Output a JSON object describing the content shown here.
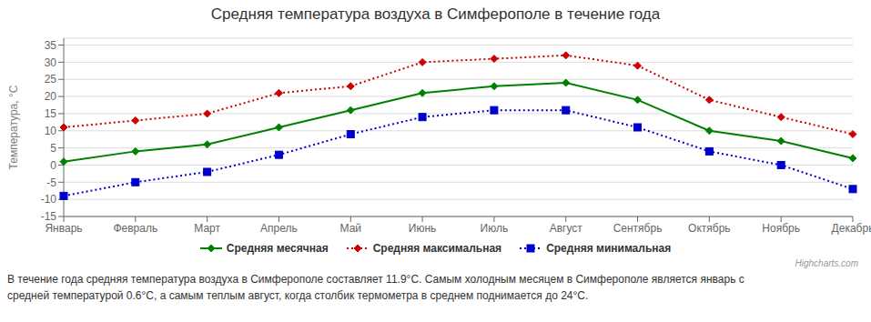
{
  "chart_data": {
    "type": "line",
    "title": "Средняя температура воздуха в Симферополе в течение года",
    "ylabel": "Температура, °С",
    "categories": [
      "Январь",
      "Февраль",
      "Март",
      "Апрель",
      "Май",
      "Июнь",
      "Июль",
      "Август",
      "Сентябрь",
      "Октябрь",
      "Ноябрь",
      "Декабрь"
    ],
    "series": [
      {
        "name": "Средняя месячная",
        "color": "#008000",
        "values": [
          1,
          4,
          6,
          11,
          16,
          21,
          23,
          24,
          19,
          10,
          7,
          2
        ],
        "marker": "diamond",
        "line_style": "solid"
      },
      {
        "name": "Средняя максимальная",
        "color": "#cc0000",
        "values": [
          11,
          13,
          15,
          21,
          23,
          30,
          31,
          32,
          29,
          19,
          14,
          9
        ],
        "marker": "diamond",
        "line_style": "dotted"
      },
      {
        "name": "Средняя минимальная",
        "color": "#0000cc",
        "values": [
          -9,
          -5,
          -2,
          3,
          9,
          14,
          16,
          16,
          11,
          4,
          0,
          -7
        ],
        "marker": "square",
        "line_style": "dotted"
      }
    ],
    "ylim": [
      -15,
      37
    ],
    "yticks": [
      -15,
      -10,
      -5,
      0,
      5,
      10,
      15,
      20,
      25,
      30,
      35
    ],
    "grid": true,
    "legend": "bottom",
    "annotations": [
      "В течение года средняя температура воздуха в Симферополе составляет 11.9°С. Самым холодным месяцем в Симферополе является январь с",
      "средней температурой 0.6°С, а самым теплым август, когда столбик термометра в среднем поднимается до 24°С.",
      "Highcharts.com"
    ]
  }
}
